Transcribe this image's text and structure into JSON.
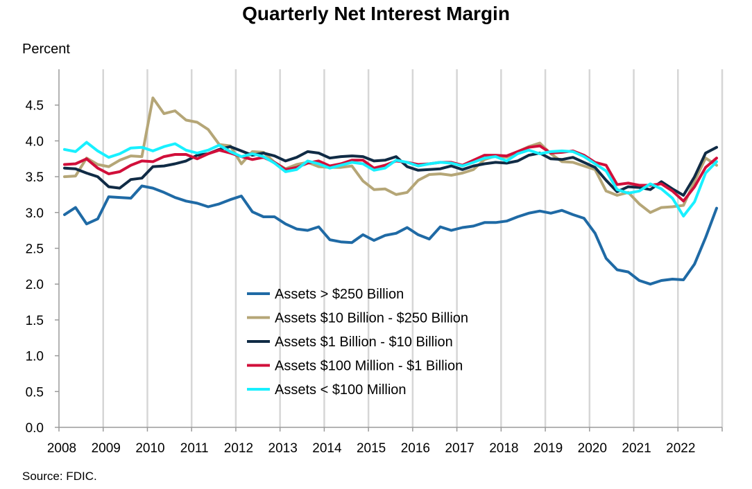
{
  "chart_data": {
    "type": "line",
    "title": "Quarterly Net Interest Margin",
    "ylabel": "Percent",
    "xlabel": "",
    "source": "Source: FDIC.",
    "ylim": [
      0,
      5
    ],
    "xlim": [
      2008,
      2023
    ],
    "grid": "vertical",
    "legend_position": "lower-center",
    "y_ticks": [
      "0.0",
      "0.5",
      "1.0",
      "1.5",
      "2.0",
      "2.5",
      "3.0",
      "3.5",
      "4.0",
      "4.5"
    ],
    "x_ticks": [
      "2008",
      "2009",
      "2010",
      "2011",
      "2012",
      "2013",
      "2014",
      "2015",
      "2016",
      "2017",
      "2018",
      "2019",
      "2020",
      "2021",
      "2022"
    ],
    "series": [
      {
        "name": "Assets > $250 Billion",
        "color": "#1f6aa5",
        "values": [
          2.97,
          3.07,
          2.84,
          2.91,
          3.22,
          3.21,
          3.2,
          3.37,
          3.34,
          3.28,
          3.21,
          3.16,
          3.13,
          3.08,
          3.12,
          3.18,
          3.23,
          3.01,
          2.94,
          2.94,
          2.84,
          2.77,
          2.75,
          2.8,
          2.62,
          2.59,
          2.58,
          2.69,
          2.61,
          2.68,
          2.71,
          2.79,
          2.69,
          2.63,
          2.8,
          2.75,
          2.79,
          2.81,
          2.86,
          2.86,
          2.88,
          2.94,
          2.99,
          3.02,
          2.99,
          3.03,
          2.97,
          2.92,
          2.71,
          2.36,
          2.2,
          2.17,
          2.05,
          2.0,
          2.05,
          2.07,
          2.06,
          2.28,
          2.65,
          3.06
        ]
      },
      {
        "name": "Assets  $10 Billion - $250 Billion",
        "color": "#b5a677",
        "values": [
          3.5,
          3.51,
          3.76,
          3.67,
          3.64,
          3.73,
          3.79,
          3.78,
          4.6,
          4.38,
          4.42,
          4.29,
          4.26,
          4.16,
          3.95,
          3.93,
          3.68,
          3.85,
          3.84,
          3.7,
          3.61,
          3.67,
          3.7,
          3.64,
          3.63,
          3.63,
          3.65,
          3.44,
          3.32,
          3.33,
          3.25,
          3.28,
          3.45,
          3.53,
          3.54,
          3.52,
          3.55,
          3.6,
          3.74,
          3.79,
          3.77,
          3.85,
          3.92,
          3.97,
          3.82,
          3.71,
          3.7,
          3.65,
          3.6,
          3.3,
          3.24,
          3.28,
          3.12,
          3.0,
          3.07,
          3.08,
          3.1,
          3.44,
          3.76,
          3.66
        ]
      },
      {
        "name": "Assets  $1 Billion - $10 Billion",
        "color": "#102b45",
        "values": [
          3.62,
          3.61,
          3.55,
          3.5,
          3.36,
          3.34,
          3.46,
          3.48,
          3.64,
          3.65,
          3.68,
          3.72,
          3.8,
          3.82,
          3.88,
          3.92,
          3.86,
          3.8,
          3.83,
          3.79,
          3.72,
          3.77,
          3.85,
          3.83,
          3.76,
          3.78,
          3.79,
          3.78,
          3.72,
          3.73,
          3.78,
          3.64,
          3.59,
          3.6,
          3.61,
          3.65,
          3.6,
          3.65,
          3.68,
          3.7,
          3.69,
          3.72,
          3.8,
          3.83,
          3.75,
          3.74,
          3.77,
          3.7,
          3.63,
          3.45,
          3.29,
          3.36,
          3.35,
          3.32,
          3.43,
          3.33,
          3.24,
          3.5,
          3.83,
          3.91
        ]
      },
      {
        "name": "Assets  $100 Million - $1 Billion",
        "color": "#d10f3a",
        "values": [
          3.67,
          3.68,
          3.75,
          3.62,
          3.54,
          3.57,
          3.66,
          3.72,
          3.71,
          3.78,
          3.81,
          3.81,
          3.75,
          3.82,
          3.87,
          3.83,
          3.78,
          3.74,
          3.77,
          3.7,
          3.6,
          3.63,
          3.69,
          3.72,
          3.65,
          3.68,
          3.73,
          3.73,
          3.62,
          3.66,
          3.72,
          3.7,
          3.67,
          3.68,
          3.7,
          3.7,
          3.66,
          3.73,
          3.8,
          3.8,
          3.79,
          3.85,
          3.91,
          3.93,
          3.83,
          3.84,
          3.86,
          3.8,
          3.7,
          3.66,
          3.39,
          3.41,
          3.38,
          3.38,
          3.4,
          3.3,
          3.16,
          3.36,
          3.63,
          3.76
        ]
      },
      {
        "name": "Assets < $100 Million",
        "color": "#18f0ff",
        "values": [
          3.88,
          3.85,
          3.98,
          3.86,
          3.77,
          3.82,
          3.9,
          3.91,
          3.86,
          3.92,
          3.96,
          3.87,
          3.83,
          3.87,
          3.94,
          3.85,
          3.78,
          3.82,
          3.78,
          3.69,
          3.57,
          3.6,
          3.72,
          3.68,
          3.62,
          3.66,
          3.7,
          3.68,
          3.59,
          3.62,
          3.73,
          3.7,
          3.65,
          3.68,
          3.7,
          3.69,
          3.65,
          3.7,
          3.76,
          3.78,
          3.72,
          3.82,
          3.87,
          3.82,
          3.85,
          3.86,
          3.85,
          3.78,
          3.68,
          3.58,
          3.32,
          3.27,
          3.3,
          3.4,
          3.33,
          3.2,
          2.95,
          3.15,
          3.55,
          3.71
        ]
      }
    ]
  }
}
